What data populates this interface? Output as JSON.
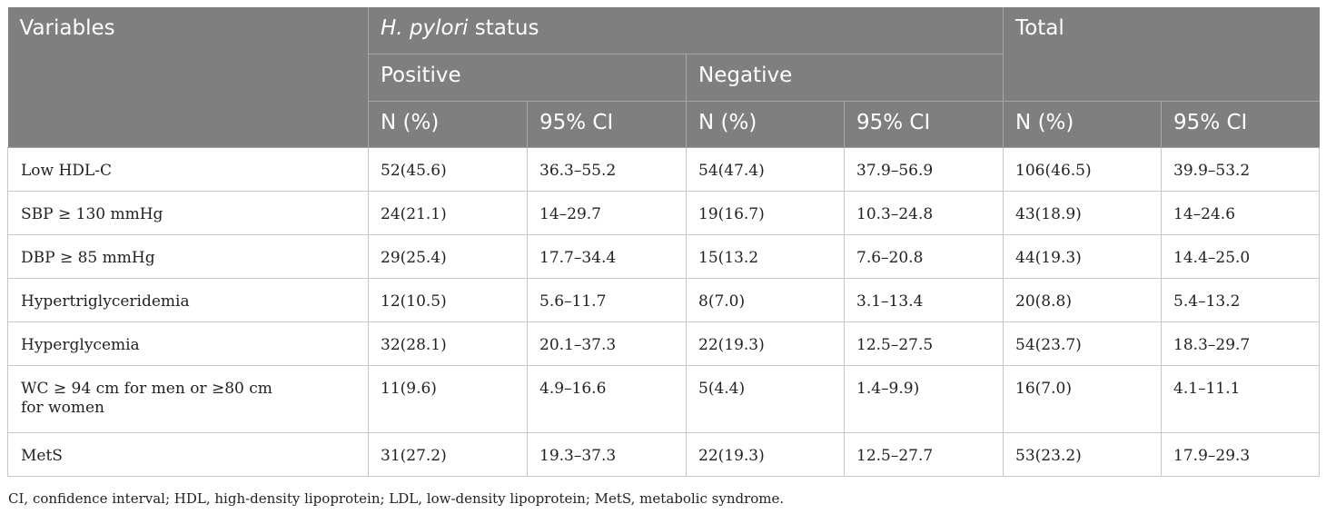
{
  "table": {
    "header": {
      "variables": "Variables",
      "hp_status_italic": "H. pylori",
      "hp_status_rest": " status",
      "total": "Total",
      "positive": "Positive",
      "negative": "Negative",
      "n_pct": "N (%)",
      "ci": "95% CI"
    },
    "rows": [
      {
        "variable": "Low HDL-C",
        "pos_n": "52(45.6)",
        "pos_ci": "36.3–55.2",
        "neg_n": "54(47.4)",
        "neg_ci": "37.9–56.9",
        "tot_n": "106(46.5)",
        "tot_ci": "39.9–53.2"
      },
      {
        "variable": "SBP ≥ 130 mmHg",
        "pos_n": "24(21.1)",
        "pos_ci": "14–29.7",
        "neg_n": "19(16.7)",
        "neg_ci": "10.3–24.8",
        "tot_n": "43(18.9)",
        "tot_ci": "14–24.6"
      },
      {
        "variable": "DBP ≥ 85 mmHg",
        "pos_n": "29(25.4)",
        "pos_ci": "17.7–34.4",
        "neg_n": "15(13.2",
        "neg_ci": "7.6–20.8",
        "tot_n": "44(19.3)",
        "tot_ci": "14.4–25.0"
      },
      {
        "variable": "Hypertriglyceridemia",
        "pos_n": "12(10.5)",
        "pos_ci": "5.6–11.7",
        "neg_n": "8(7.0)",
        "neg_ci": "3.1–13.4",
        "tot_n": "20(8.8)",
        "tot_ci": "5.4–13.2"
      },
      {
        "variable": "Hyperglycemia",
        "pos_n": "32(28.1)",
        "pos_ci": "20.1–37.3",
        "neg_n": "22(19.3)",
        "neg_ci": "12.5–27.5",
        "tot_n": "54(23.7)",
        "tot_ci": "18.3–29.7"
      },
      {
        "variable_line1": "WC ≥ 94 cm for men or ≥80 cm",
        "variable_line2": "for women",
        "pos_n": "11(9.6)",
        "pos_ci": "4.9–16.6",
        "neg_n": "5(4.4)",
        "neg_ci": "1.4–9.9)",
        "tot_n": "16(7.0)",
        "tot_ci": "4.1–11.1"
      },
      {
        "variable": "MetS",
        "pos_n": "31(27.2)",
        "pos_ci": "19.3–37.3",
        "neg_n": "22(19.3)",
        "neg_ci": "12.5–27.7",
        "tot_n": "53(23.2)",
        "tot_ci": "17.9–29.3"
      }
    ]
  },
  "footnote": "CI, confidence interval; HDL, high-density lipoprotein; LDL, low-density lipoprotein; MetS, metabolic syndrome.",
  "colors": {
    "header_bg": "#7f7f7f",
    "header_text": "#ffffff",
    "grid_line": "#c8c8c8",
    "body_text": "#222222"
  }
}
